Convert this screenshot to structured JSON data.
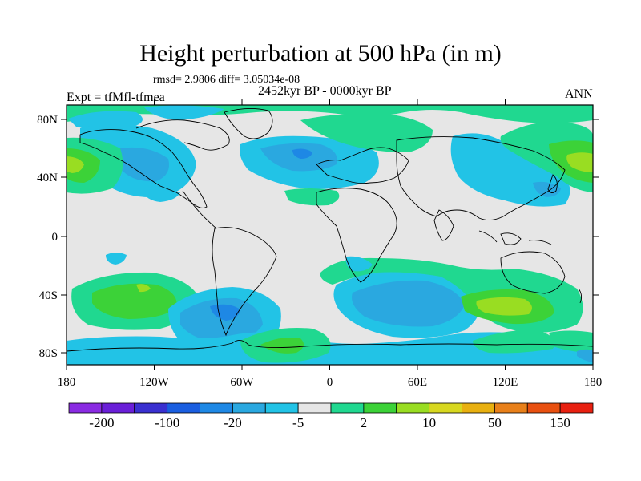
{
  "title": "Height perturbation at 500 hPa (in m)",
  "rmsd_text": "rmsd= 2.9806 diff= 3.05034e-08",
  "expt_text": "Expt = tfMfl-tfmea",
  "period_text": "2452kyr BP - 0000kyr BP",
  "season_text": "ANN",
  "lat_labels": [
    "80N",
    "40N",
    "0",
    "40S",
    "80S"
  ],
  "lon_labels": [
    "180",
    "120W",
    "60W",
    "0",
    "60E",
    "120E",
    "180"
  ],
  "colorbar": {
    "colors": [
      "#8a2be2",
      "#6a1fd8",
      "#3a30d0",
      "#1a5ee0",
      "#1e88e5",
      "#2aa8e0",
      "#22c3e6",
      "#e6e6e6",
      "#20d890",
      "#3cd238",
      "#99dd22",
      "#d8d820",
      "#e8b010",
      "#e8801a",
      "#e85010",
      "#e82010"
    ],
    "tick_labels": [
      "-200",
      "-100",
      "-20",
      "-5",
      "2",
      "10",
      "50",
      "150"
    ]
  },
  "palette": {
    "background": "#e6e6e6",
    "neg_light": "#22c3e6",
    "neg_mid": "#2aa8e0",
    "neg_strong": "#1e88e5",
    "pos_light": "#20d890",
    "pos_mid": "#3cd238",
    "pos_strong": "#99dd22",
    "pos_peak": "#d8d820"
  }
}
